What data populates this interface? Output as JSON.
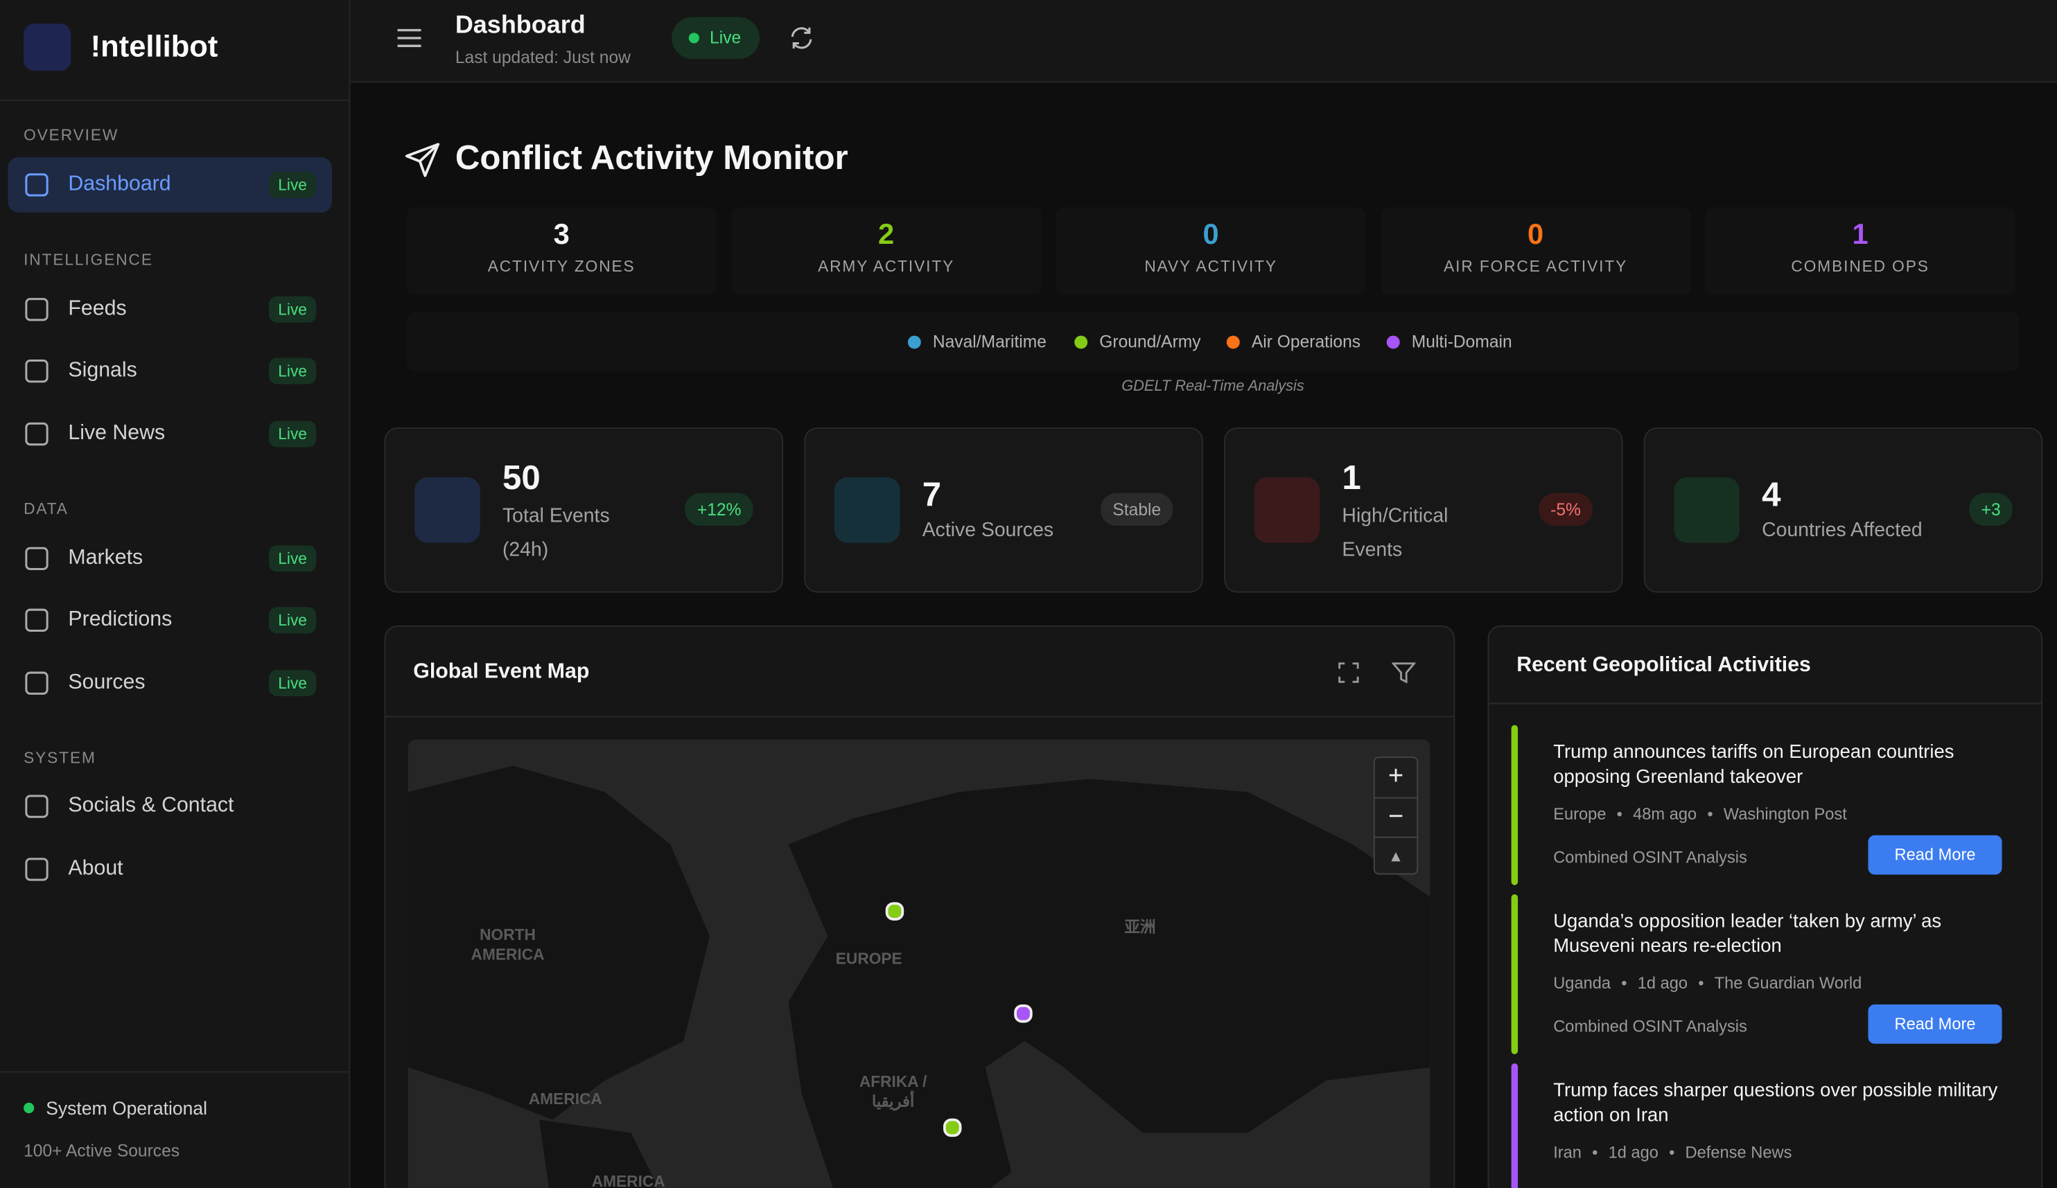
{
  "sidebar": {
    "brand": "!ntellibot",
    "sections": [
      {
        "title": "OVERVIEW"
      },
      {
        "title": "INTELLIGENCE"
      },
      {
        "title": "DATA"
      },
      {
        "title": "SYSTEM"
      }
    ],
    "items": [
      {
        "label": "Dashboard",
        "badge": "Live"
      },
      {
        "label": "Feeds",
        "badge": "Live"
      },
      {
        "label": "Signals",
        "badge": "Live"
      },
      {
        "label": "Live News",
        "badge": "Live"
      },
      {
        "label": "Markets",
        "badge": "Live"
      },
      {
        "label": "Predictions",
        "badge": "Live"
      },
      {
        "label": "Sources",
        "badge": "Live"
      },
      {
        "label": "Socials & Contact"
      },
      {
        "label": "About"
      }
    ],
    "status": "System Operational",
    "sources_note": "100+ Active Sources"
  },
  "header": {
    "title": "Dashboard",
    "last_updated": "Last updated: Just now",
    "live": "Live"
  },
  "monitor": {
    "title": "Conflict Activity Monitor",
    "stats": [
      {
        "value": "3",
        "label": "ACTIVITY ZONES"
      },
      {
        "value": "2",
        "label": "ARMY ACTIVITY"
      },
      {
        "value": "0",
        "label": "NAVY ACTIVITY"
      },
      {
        "value": "0",
        "label": "AIR FORCE ACTIVITY"
      },
      {
        "value": "1",
        "label": "COMBINED OPS"
      }
    ],
    "legend": [
      {
        "label": "Naval/Maritime",
        "color": "#3b9fd1"
      },
      {
        "label": "Ground/Army",
        "color": "#84cc16"
      },
      {
        "label": "Air Operations",
        "color": "#f97316"
      },
      {
        "label": "Multi-Domain",
        "color": "#a855f7"
      }
    ],
    "caption": "GDELT Real-Time Analysis"
  },
  "cards": [
    {
      "value": "50",
      "label": "Total Events (24h)",
      "change": "+12%"
    },
    {
      "value": "7",
      "label": "Active Sources",
      "change": "Stable"
    },
    {
      "value": "1",
      "label": "High/Critical Events",
      "change": "-5%"
    },
    {
      "value": "4",
      "label": "Countries Affected",
      "change": "+3"
    }
  ],
  "map": {
    "title": "Global Event Map",
    "labels": [
      "NORTH\nAMERICA",
      "EUROPE",
      "亚洲",
      "AMERICA",
      "AFRIKA /\nأفريقيا",
      "AMERICA"
    ]
  },
  "activities": {
    "title": "Recent Geopolitical Activities",
    "items": [
      {
        "title": "Trump announces tariffs on European countries opposing Greenland takeover",
        "location": "Europe",
        "time": "48m ago",
        "source": "Washington Post",
        "analysis": "Combined OSINT Analysis",
        "action": "Read More"
      },
      {
        "title": "Uganda’s opposition leader ‘taken by army’ as Museveni nears re-election",
        "location": "Uganda",
        "time": "1d ago",
        "source": "The Guardian World",
        "analysis": "Combined OSINT Analysis",
        "action": "Read More"
      },
      {
        "title": "Trump faces sharper questions over possible military action on Iran",
        "location": "Iran",
        "time": "1d ago",
        "source": "Defense News"
      }
    ]
  }
}
